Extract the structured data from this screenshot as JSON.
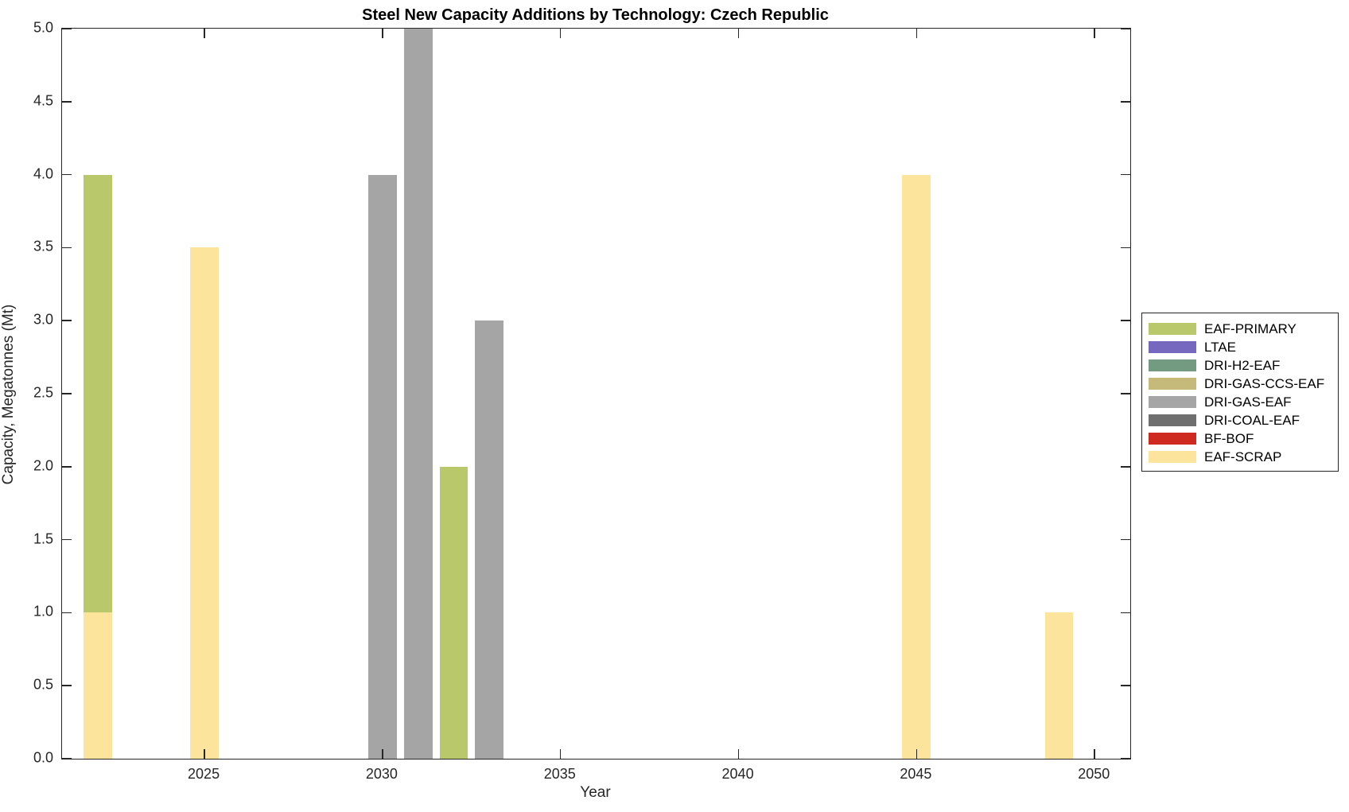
{
  "chart_data": {
    "type": "bar",
    "stacked": true,
    "title": "Steel New Capacity Additions by Technology: Czech Republic",
    "xlabel": "Year",
    "ylabel": "Capacity, Megatonnes (Mt)",
    "xlim": [
      2021,
      2051
    ],
    "ylim": [
      0,
      5
    ],
    "grid": false,
    "legend_position": "right-outside",
    "bar_width_years": 0.8,
    "x_ticks": {
      "values": [
        2025,
        2030,
        2035,
        2040,
        2045,
        2050
      ],
      "labels": [
        "2025",
        "2030",
        "2035",
        "2040",
        "2045",
        "2050"
      ]
    },
    "y_ticks": {
      "values": [
        0,
        0.5,
        1,
        1.5,
        2,
        2.5,
        3,
        3.5,
        4,
        4.5,
        5
      ],
      "labels": [
        "0.0",
        "0.5",
        "1.0",
        "1.5",
        "2.0",
        "2.5",
        "3.0",
        "3.5",
        "4.0",
        "4.5",
        "5.0"
      ]
    },
    "series_colors": {
      "EAF-PRIMARY": "#b9c86a",
      "LTAE": "#7568be",
      "DRI-H2-EAF": "#739b82",
      "DRI-GAS-CCS-EAF": "#c5ba79",
      "DRI-GAS-EAF": "#a5a5a5",
      "DRI-COAL-EAF": "#6f6f6f",
      "BF-BOF": "#cf2a1f",
      "EAF-SCRAP": "#fde49c"
    },
    "legend_entries": [
      "EAF-PRIMARY",
      "LTAE",
      "DRI-H2-EAF",
      "DRI-GAS-CCS-EAF",
      "DRI-GAS-EAF",
      "DRI-COAL-EAF",
      "BF-BOF",
      "EAF-SCRAP"
    ],
    "bars": [
      {
        "x": 2022,
        "segments": [
          {
            "series": "EAF-SCRAP",
            "value": 1.0
          },
          {
            "series": "EAF-PRIMARY",
            "value": 3.0
          }
        ]
      },
      {
        "x": 2025,
        "segments": [
          {
            "series": "EAF-SCRAP",
            "value": 3.5
          }
        ]
      },
      {
        "x": 2030,
        "segments": [
          {
            "series": "DRI-GAS-EAF",
            "value": 4.0
          }
        ]
      },
      {
        "x": 2031,
        "segments": [
          {
            "series": "DRI-GAS-EAF",
            "value": 5.0
          }
        ]
      },
      {
        "x": 2032,
        "segments": [
          {
            "series": "EAF-PRIMARY",
            "value": 2.0
          }
        ]
      },
      {
        "x": 2033,
        "segments": [
          {
            "series": "DRI-GAS-EAF",
            "value": 3.0
          }
        ]
      },
      {
        "x": 2045,
        "segments": [
          {
            "series": "EAF-SCRAP",
            "value": 4.0
          }
        ]
      },
      {
        "x": 2049,
        "segments": [
          {
            "series": "EAF-SCRAP",
            "value": 1.0
          }
        ]
      }
    ]
  }
}
